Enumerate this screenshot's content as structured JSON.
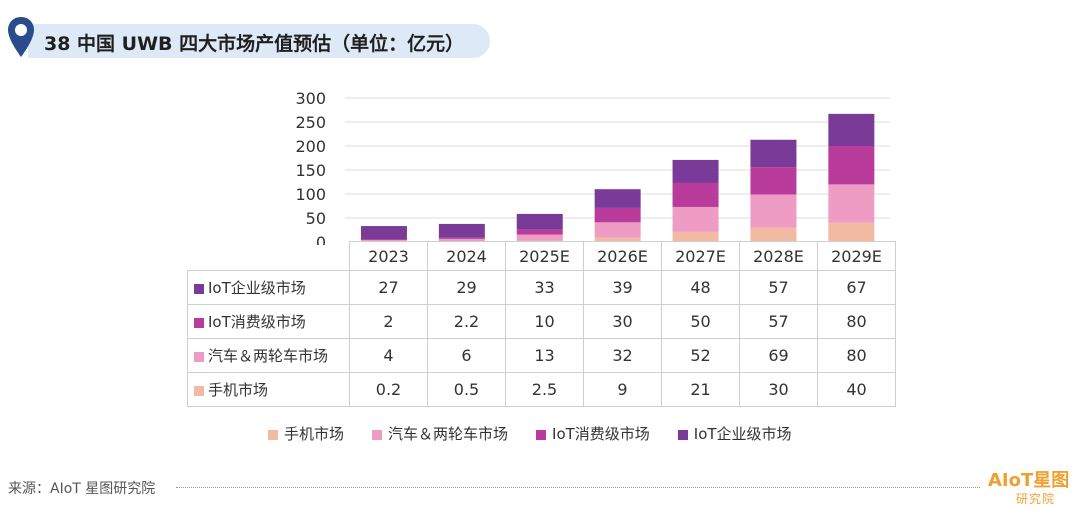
{
  "title": "38 中国 UWB 四大市场产值预估（单位：亿元）",
  "source": "来源：AIoT 星图研究院",
  "brand": {
    "name": "AIoT星图",
    "sub": "研究院"
  },
  "colors": {
    "手机市场": "#f2b9a3",
    "汽车＆两轮车市场": "#ef9cc4",
    "IoT消费级市场": "#b93b9c",
    "IoT企业级市场": "#7a3b98"
  },
  "chart_data": {
    "type": "bar",
    "stacked": true,
    "categories": [
      "2023",
      "2024",
      "2025E",
      "2026E",
      "2027E",
      "2028E",
      "2029E"
    ],
    "ylim": [
      0,
      300
    ],
    "yticks": [
      "300",
      "250",
      "200",
      "150",
      "100",
      "50",
      "0"
    ],
    "series": [
      {
        "name": "手机市场",
        "values": [
          0.2,
          0.5,
          2.5,
          9,
          21,
          30,
          40
        ]
      },
      {
        "name": "汽车＆两轮车市场",
        "values": [
          4,
          6,
          13,
          32,
          52,
          69,
          80
        ]
      },
      {
        "name": "IoT消费级市场",
        "values": [
          2,
          2.2,
          10,
          30,
          50,
          57,
          80
        ]
      },
      {
        "name": "IoT企业级市场",
        "values": [
          27,
          29,
          33,
          39,
          48,
          57,
          67
        ]
      }
    ],
    "table_rows": [
      {
        "label": "IoT企业级市场",
        "values": [
          "27",
          "29",
          "33",
          "39",
          "48",
          "57",
          "67"
        ]
      },
      {
        "label": "IoT消费级市场",
        "values": [
          "2",
          "2.2",
          "10",
          "30",
          "50",
          "57",
          "80"
        ]
      },
      {
        "label": "汽车＆两轮车市场",
        "values": [
          "4",
          "6",
          "13",
          "32",
          "52",
          "69",
          "80"
        ]
      },
      {
        "label": "手机市场",
        "values": [
          "0.2",
          "0.5",
          "2.5",
          "9",
          "21",
          "30",
          "40"
        ]
      }
    ],
    "legend": [
      "手机市场",
      "汽车＆两轮车市场",
      "IoT消费级市场",
      "IoT企业级市场"
    ]
  }
}
